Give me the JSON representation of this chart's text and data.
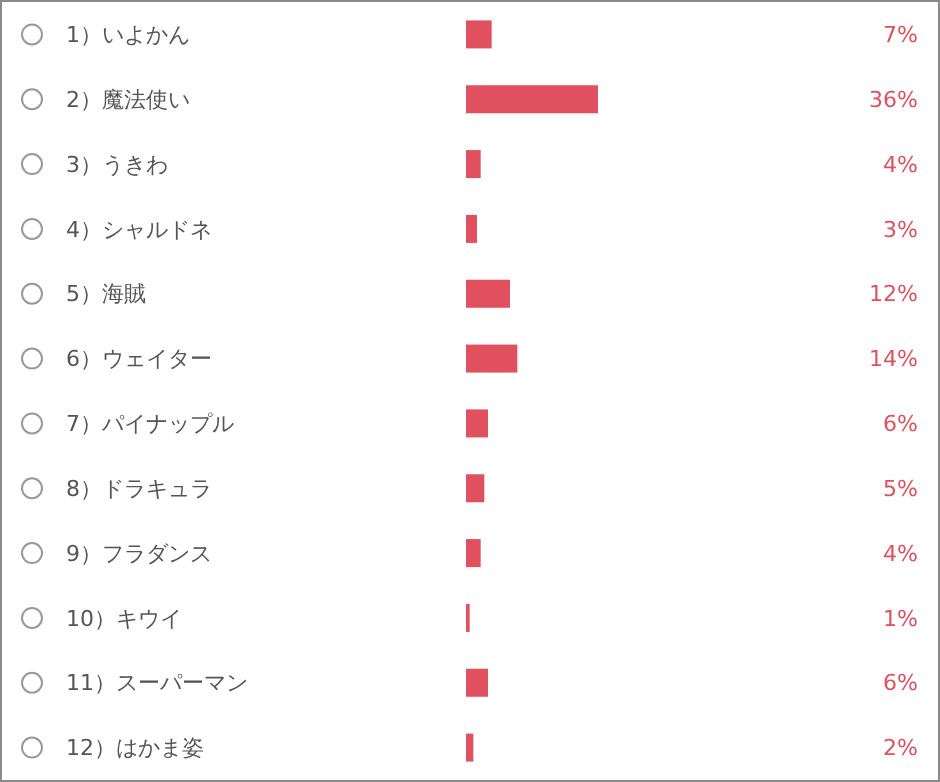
{
  "chart_data": {
    "type": "bar",
    "orientation": "horizontal",
    "categories": [
      "1）いよかん",
      "2）魔法使い",
      "3）うきわ",
      "4）シャルドネ",
      "5）海賊",
      "6）ウェイター",
      "7）パイナップル",
      "8）ドラキュラ",
      "9）フラダンス",
      "10）キウイ",
      "11）スーパーマン",
      "12）はかま姿"
    ],
    "values": [
      7,
      36,
      4,
      3,
      12,
      14,
      6,
      5,
      4,
      1,
      6,
      2
    ],
    "value_labels": [
      "7%",
      "36%",
      "4%",
      "3%",
      "12%",
      "14%",
      "6%",
      "5%",
      "4%",
      "1%",
      "6%",
      "2%"
    ],
    "color": "#e0505e"
  }
}
